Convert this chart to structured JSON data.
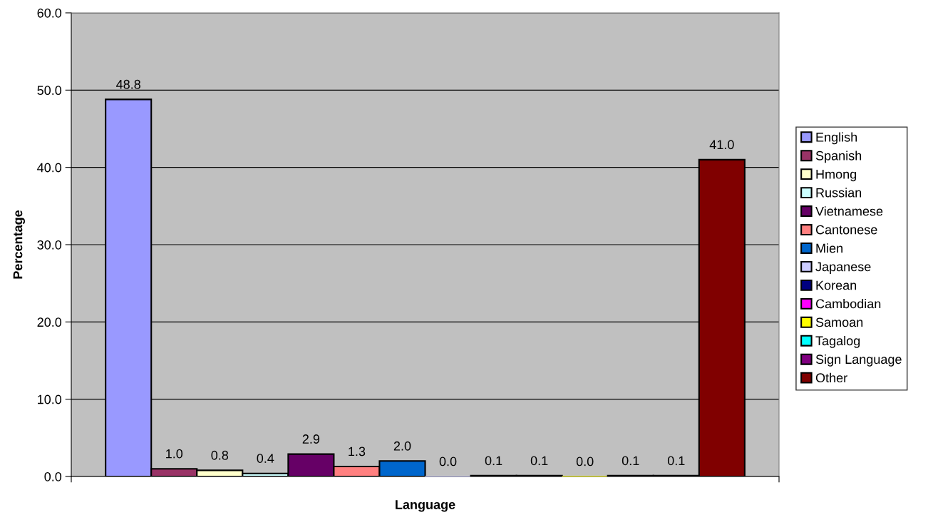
{
  "chart_data": {
    "type": "bar",
    "xlabel": "Language",
    "ylabel": "Percentage",
    "categories": [
      null
    ],
    "series": [
      {
        "name": "English",
        "color": "#9999ff",
        "values": [
          48.8
        ],
        "value_labels": [
          "48.8"
        ]
      },
      {
        "name": "Spanish",
        "color": "#993366",
        "values": [
          1.0
        ],
        "value_labels": [
          "1.0"
        ]
      },
      {
        "name": "Hmong",
        "color": "#ffffcc",
        "values": [
          0.8
        ],
        "value_labels": [
          "0.8"
        ]
      },
      {
        "name": "Russian",
        "color": "#ccffff",
        "values": [
          0.4
        ],
        "value_labels": [
          "0.4"
        ]
      },
      {
        "name": "Vietnamese",
        "color": "#660066",
        "values": [
          2.9
        ],
        "value_labels": [
          "2.9"
        ]
      },
      {
        "name": "Cantonese",
        "color": "#ff8080",
        "values": [
          1.3
        ],
        "value_labels": [
          "1.3"
        ]
      },
      {
        "name": "Mien",
        "color": "#0066cc",
        "values": [
          2.0
        ],
        "value_labels": [
          "2.0"
        ]
      },
      {
        "name": "Japanese",
        "color": "#ccccff",
        "values": [
          0.0
        ],
        "value_labels": [
          "0.0"
        ]
      },
      {
        "name": "Korean",
        "color": "#000080",
        "values": [
          0.1
        ],
        "value_labels": [
          "0.1"
        ]
      },
      {
        "name": "Cambodian",
        "color": "#ff00ff",
        "values": [
          0.1
        ],
        "value_labels": [
          "0.1"
        ]
      },
      {
        "name": "Samoan",
        "color": "#ffff00",
        "values": [
          0.0
        ],
        "value_labels": [
          "0.0"
        ]
      },
      {
        "name": "Tagalog",
        "color": "#00ffff",
        "values": [
          0.1
        ],
        "value_labels": [
          "0.1"
        ]
      },
      {
        "name": "Sign Language",
        "color": "#800080",
        "values": [
          0.1
        ],
        "value_labels": [
          "0.1"
        ]
      },
      {
        "name": "Other",
        "color": "#800000",
        "values": [
          41.0
        ],
        "value_labels": [
          "41.0"
        ]
      }
    ],
    "ylim": [
      0,
      60
    ],
    "yticks": [
      {
        "value": 0,
        "label": "0.0"
      },
      {
        "value": 10,
        "label": "10.0"
      },
      {
        "value": 20,
        "label": "20.0"
      },
      {
        "value": 30,
        "label": "30.0"
      },
      {
        "value": 40,
        "label": "40.0"
      },
      {
        "value": 50,
        "label": "50.0"
      },
      {
        "value": 60,
        "label": "60.0"
      }
    ],
    "grid": "y",
    "legend": "right"
  }
}
